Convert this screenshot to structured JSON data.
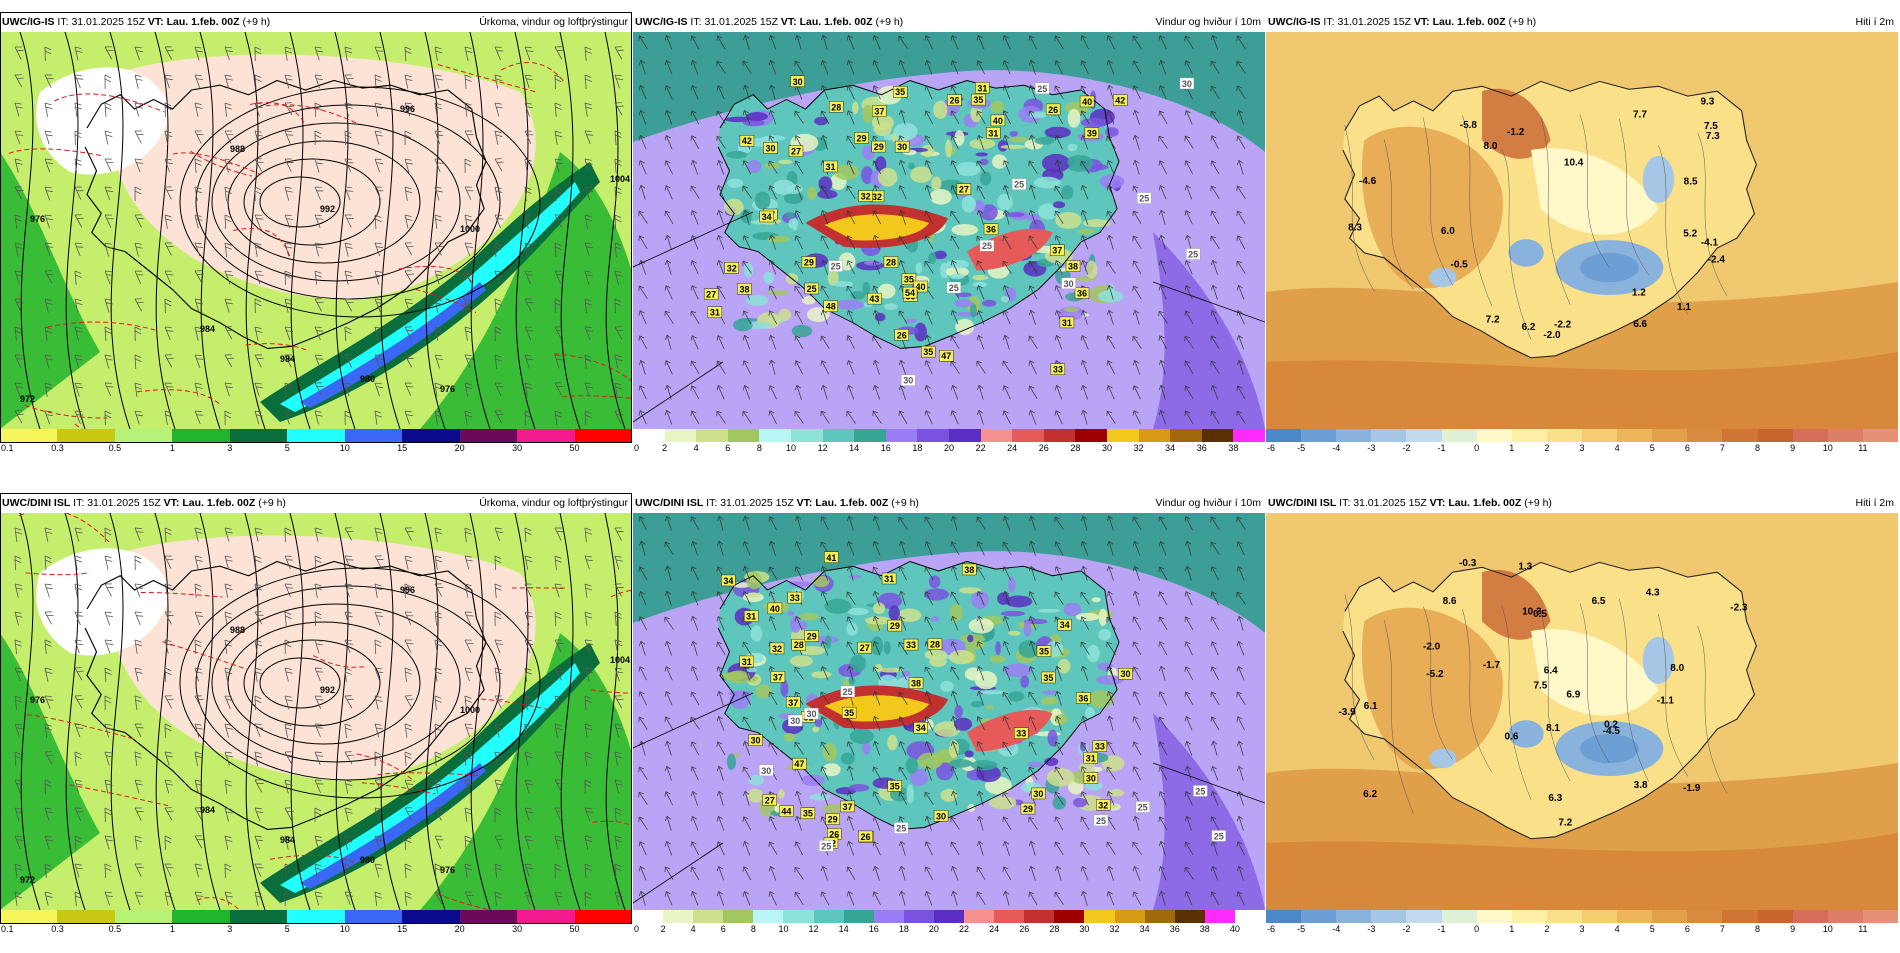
{
  "panels": [
    {
      "id": "p1",
      "model": "UWC/IG-IS",
      "it_label": "IT:",
      "it": "31.01.2025 15Z",
      "vt_label": "VT:",
      "vt": "Lau. 1.feb. 00Z",
      "lead": "(+9 h)",
      "title": "Úrkoma, vindur og loftþrýstingur",
      "kind": "precip",
      "ticks": [
        "0.1",
        "0.3",
        "0.5",
        "1",
        "3",
        "5",
        "10",
        "15",
        "20",
        "30",
        "50"
      ],
      "iso_labels": [
        "976",
        "988",
        "992",
        "996",
        "1000",
        "984",
        "984",
        "980",
        "976",
        "972",
        "1004"
      ]
    },
    {
      "id": "p2",
      "model": "UWC/IG-IS",
      "it_label": "IT:",
      "it": "31.01.2025 15Z",
      "vt_label": "VT:",
      "vt": "Lau. 1.feb. 00Z",
      "lead": "(+9 h)",
      "title": "Vindur og hviður í 10m",
      "kind": "wind",
      "ticks": [
        "0",
        "2",
        "4",
        "6",
        "8",
        "10",
        "12",
        "14",
        "16",
        "18",
        "20",
        "22",
        "24",
        "26",
        "28",
        "30",
        "32",
        "34",
        "36",
        "38"
      ],
      "gust_yellow": [
        "28",
        "26",
        "31",
        "29",
        "26",
        "29",
        "35",
        "30",
        "25",
        "35",
        "37",
        "31",
        "27",
        "34",
        "39",
        "32",
        "30",
        "27",
        "35",
        "42",
        "31",
        "38",
        "43",
        "35",
        "37",
        "40",
        "38",
        "40",
        "48",
        "50",
        "54",
        "47",
        "42",
        "36",
        "33",
        "40",
        "32",
        "29",
        "26",
        "27",
        "31",
        "32",
        "31",
        "36",
        "27",
        "30",
        "28"
      ],
      "gust_white": [
        "25",
        "25",
        "25",
        "30",
        "30",
        "25",
        "25",
        "25",
        "30",
        "25"
      ]
    },
    {
      "id": "p3",
      "model": "UWC/IG-IS",
      "it_label": "IT:",
      "it": "31.01.2025 15Z",
      "vt_label": "VT:",
      "vt": "Lau. 1.feb. 00Z",
      "lead": "(+9 h)",
      "title": "Hiti í 2m",
      "kind": "temp",
      "ticks": [
        "-6",
        "-5",
        "-4",
        "-3",
        "-2",
        "-1",
        "0",
        "1",
        "2",
        "3",
        "4",
        "5",
        "6",
        "7",
        "8",
        "9",
        "10",
        "11"
      ],
      "temps": [
        "6.6",
        "6.0",
        "8.3",
        "1.1",
        "5.2",
        "7.3",
        "10.4",
        "6.2",
        "-2.4",
        "-0.5",
        "-2.2",
        "-1.2",
        "8.0",
        "7.2",
        "7.5",
        "-4.6",
        "-5.8",
        "-2.0",
        "8.5",
        "7.7",
        "1.2",
        "-4.1",
        "9.3"
      ]
    },
    {
      "id": "p4",
      "model": "UWC/DINI ISL",
      "it_label": "IT:",
      "it": "31.01.2025 15Z",
      "vt_label": "VT:",
      "vt": "Lau. 1.feb. 00Z",
      "lead": "(+9 h)",
      "title": "Úrkoma, vindur og loftþrýstingur",
      "kind": "precip",
      "ticks": [
        "0.1",
        "0.3",
        "0.5",
        "1",
        "3",
        "5",
        "10",
        "15",
        "20",
        "30",
        "50"
      ],
      "iso_labels": [
        "976",
        "988",
        "992",
        "996",
        "1000",
        "984",
        "984",
        "980",
        "976",
        "972",
        "1004"
      ]
    },
    {
      "id": "p5",
      "model": "UWC/DINI ISL",
      "it_label": "IT:",
      "it": "31.01.2025 15Z",
      "vt_label": "VT:",
      "vt": "Lau. 1.feb. 00Z",
      "lead": "(+9 h)",
      "title": "Vindur og hviður í 10m",
      "kind": "wind",
      "ticks": [
        "0",
        "2",
        "4",
        "6",
        "8",
        "10",
        "12",
        "14",
        "16",
        "18",
        "20",
        "22",
        "24",
        "26",
        "28",
        "30",
        "32",
        "34",
        "36",
        "38",
        "40"
      ],
      "gust_yellow": [
        "28",
        "32",
        "31",
        "30",
        "28",
        "29",
        "26",
        "32",
        "35",
        "34",
        "31",
        "33",
        "33",
        "27",
        "35",
        "36",
        "42",
        "29",
        "34",
        "37",
        "38",
        "30",
        "29",
        "34",
        "39",
        "35",
        "38",
        "44",
        "47",
        "40",
        "30",
        "31",
        "33",
        "35",
        "41",
        "30",
        "31",
        "27",
        "29",
        "35",
        "37",
        "26",
        "30",
        "37",
        "31",
        "33"
      ],
      "gust_white": [
        "25",
        "25",
        "25",
        "30",
        "30",
        "25",
        "25",
        "25",
        "30",
        "25"
      ]
    },
    {
      "id": "p6",
      "model": "UWC/DINI ISL",
      "it_label": "IT:",
      "it": "31.01.2025 15Z",
      "vt_label": "VT:",
      "vt": "Lau. 1.feb. 00Z",
      "lead": "(+9 h)",
      "title": "Hiti í 2m",
      "kind": "temp",
      "ticks": [
        "-6",
        "-5",
        "-4",
        "-3",
        "-2",
        "-1",
        "0",
        "1",
        "2",
        "3",
        "4",
        "5",
        "6",
        "7",
        "8",
        "9",
        "10",
        "11"
      ],
      "temps": [
        "6.9",
        "6.3",
        "6.2",
        "0.5",
        "6.1",
        "6.4",
        "4.3",
        "10.3",
        "8.0",
        "0.2",
        "-2.3",
        "8.6",
        "7.2",
        "-1.9",
        "-0.3",
        "-1.1",
        "7.5",
        "-2.0",
        "-4.5",
        "-5.2",
        "-1.7",
        "8.1",
        "1.3",
        "-3.9",
        "3.8",
        "0.6",
        "6.5"
      ]
    }
  ],
  "colors": {
    "precip": [
      "#f6f55a",
      "#c9c913",
      "#b6f278",
      "#21b42d",
      "#0a6e3c",
      "#22ffff",
      "#3a68f5",
      "#0a0a8c",
      "#6c0a5a",
      "#f21a8c",
      "#ff0000"
    ],
    "wind": [
      "#ffffff",
      "#e9f5c4",
      "#cde08c",
      "#a2c760",
      "#b8f6f6",
      "#8de2da",
      "#5ec6bc",
      "#36a596",
      "#9a7ef5",
      "#7a52e0",
      "#5a2ec2",
      "#f59090",
      "#e65a5a",
      "#c23030",
      "#9c0000",
      "#f2c81c",
      "#d69a14",
      "#a06a0a",
      "#5a3000",
      "#ff2aff"
    ],
    "temp": [
      "#4a88c8",
      "#6d9ed4",
      "#89b3dc",
      "#a5c6e5",
      "#c2d9ee",
      "#dff0d6",
      "#fff8c8",
      "#fff0a8",
      "#fbe08a",
      "#f5cc70",
      "#edb65a",
      "#e2a04a",
      "#d88a3e",
      "#cf7634",
      "#c8642e",
      "#d46e58",
      "#dd7e66",
      "#e79078"
    ]
  }
}
